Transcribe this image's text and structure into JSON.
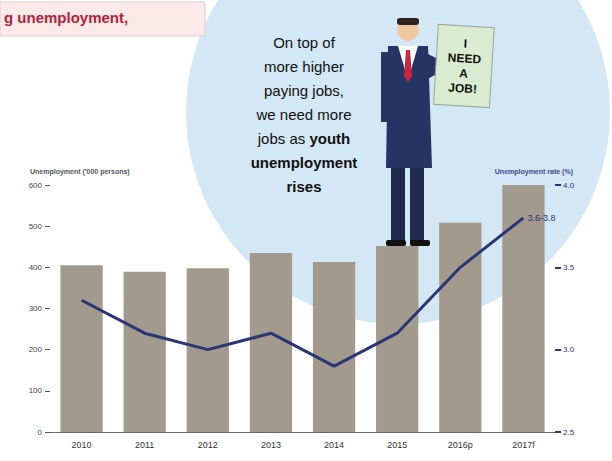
{
  "chart_data": {
    "type": "bar",
    "title": "g unemployment,",
    "categories": [
      "2010",
      "2011",
      "2012",
      "2013",
      "2014",
      "2015",
      "2016p",
      "2017f"
    ],
    "series": [
      {
        "type": "bar",
        "color": "#a39a8e",
        "values": [
          405,
          389,
          398,
          435,
          413,
          452,
          508,
          600
        ]
      },
      {
        "type": "line",
        "axis": "y2",
        "color": "#2b3675",
        "marker": "none",
        "line_style": "solid",
        "values": [
          3.3,
          3.1,
          3.0,
          3.1,
          2.9,
          3.1,
          3.5,
          3.8
        ]
      }
    ],
    "y_label": "Unemployment ('000 persons)",
    "ylim": [
      0,
      600
    ],
    "yticks": [
      0,
      100,
      200,
      300,
      400,
      500,
      600
    ],
    "y2_label": "Unemployment rate (%)",
    "y2lim": [
      2.5,
      4.0
    ],
    "y2ticks": [
      {
        "value": 2.5,
        "label": "2.5"
      },
      {
        "value": 3.0,
        "label": "3.0"
      },
      {
        "value": 3.5,
        "label": "3.5"
      },
      {
        "value": 4.0,
        "label": "4.0"
      }
    ],
    "grid": false,
    "data_labels": false,
    "annotations": [
      {
        "text": "On top of more higher paying jobs, we need more jobs as",
        "emphasis": "youth unemployment rises"
      },
      {
        "text": "I NEED A JOB!"
      },
      {
        "text": "3.6-3.8",
        "category": "2017f",
        "axis": "y2"
      }
    ]
  }
}
